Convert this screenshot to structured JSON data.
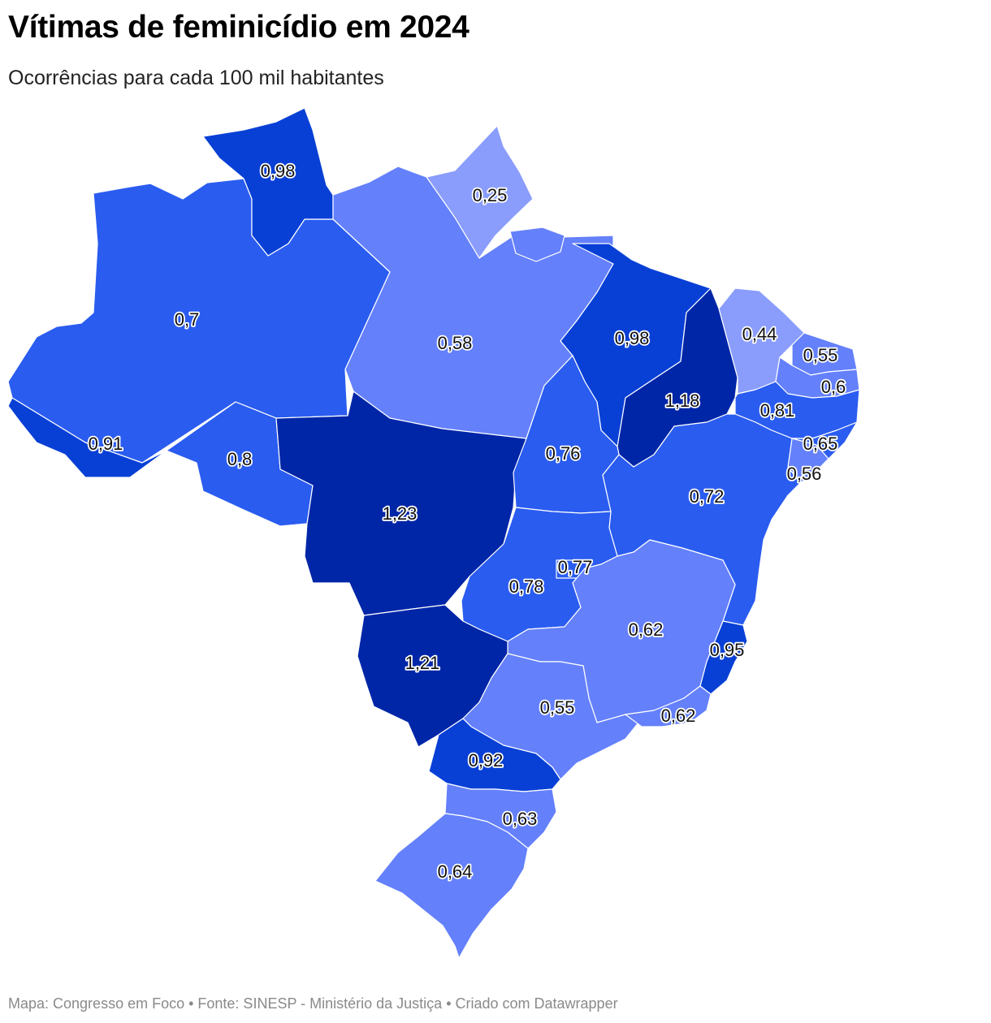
{
  "header": {
    "title": "Vítimas de feminicídio em 2024",
    "subtitle": "Ocorrências para cada 100 mil habitantes"
  },
  "footer": {
    "text": "Mapa: Congresso em Foco • Fonte: SINESP - Ministério da Justiça • Criado com Datawrapper"
  },
  "colors": {
    "low": "#8a9dfc",
    "mid_low": "#6480fb",
    "mid": "#2a5cf0",
    "mid_high": "#0840d6",
    "high": "#0026a8",
    "border": "#ffffff"
  },
  "map_data": {
    "type": "choropleth",
    "regions": [
      {
        "state": "RR",
        "value": "0,98"
      },
      {
        "state": "AP",
        "value": "0,25"
      },
      {
        "state": "AM",
        "value": "0,7"
      },
      {
        "state": "PA",
        "value": "0,58"
      },
      {
        "state": "AC",
        "value": "0,91"
      },
      {
        "state": "RO",
        "value": "0,8"
      },
      {
        "state": "MT",
        "value": "1,23"
      },
      {
        "state": "MA",
        "value": "0,98"
      },
      {
        "state": "PI",
        "value": "1,18"
      },
      {
        "state": "CE",
        "value": "0,44"
      },
      {
        "state": "RN",
        "value": "0,55"
      },
      {
        "state": "PB",
        "value": "0,6"
      },
      {
        "state": "PE",
        "value": "0,81"
      },
      {
        "state": "AL",
        "value": "0,65"
      },
      {
        "state": "SE",
        "value": "0,56"
      },
      {
        "state": "TO",
        "value": "0,76"
      },
      {
        "state": "BA",
        "value": "0,72"
      },
      {
        "state": "GO",
        "value": "0,78"
      },
      {
        "state": "DF",
        "value": "0,77"
      },
      {
        "state": "MG",
        "value": "0,62"
      },
      {
        "state": "ES",
        "value": "0,95"
      },
      {
        "state": "MS",
        "value": "1,21"
      },
      {
        "state": "SP",
        "value": "0,55"
      },
      {
        "state": "RJ",
        "value": "0,62"
      },
      {
        "state": "PR",
        "value": "0,92"
      },
      {
        "state": "SC",
        "value": "0,63"
      },
      {
        "state": "RS",
        "value": "0,64"
      }
    ]
  }
}
